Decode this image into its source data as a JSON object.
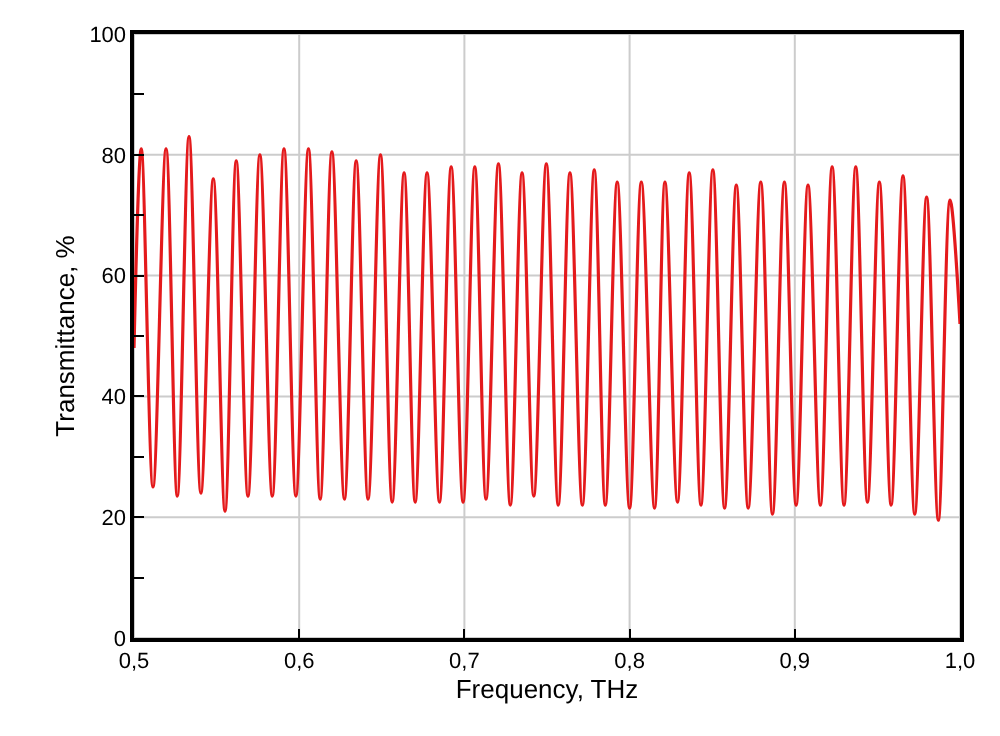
{
  "chart_data": {
    "type": "line",
    "xlabel": "Frequency, THz",
    "ylabel": "Transmittance, %",
    "x": [
      0.5,
      0.5044,
      0.5115,
      0.5194,
      0.5262,
      0.5333,
      0.5405,
      0.548,
      0.5551,
      0.5619,
      0.569,
      0.5762,
      0.5837,
      0.5908,
      0.598,
      0.6056,
      0.6127,
      0.6198,
      0.6274,
      0.6345,
      0.6417,
      0.6492,
      0.6563,
      0.6635,
      0.6702,
      0.6774,
      0.6849,
      0.692,
      0.6992,
      0.7063,
      0.7131,
      0.7206,
      0.7278,
      0.7349,
      0.742,
      0.7496,
      0.7568,
      0.7639,
      0.7714,
      0.7786,
      0.7853,
      0.7925,
      0.8,
      0.8071,
      0.8151,
      0.8214,
      0.829,
      0.8361,
      0.8432,
      0.8504,
      0.8575,
      0.8646,
      0.8718,
      0.8794,
      0.8865,
      0.8937,
      0.9008,
      0.908,
      0.9155,
      0.9226,
      0.9298,
      0.9369,
      0.944,
      0.9512,
      0.9583,
      0.9655,
      0.9726,
      0.9798,
      0.9869,
      0.994,
      1.0
    ],
    "series": [
      {
        "color": "#e41a1c",
        "values": [
          48,
          81,
          25,
          81,
          23.5,
          83,
          24,
          76,
          21,
          79,
          23.5,
          80,
          23.5,
          81,
          23.5,
          81,
          23,
          80.5,
          23,
          79,
          23,
          80,
          22.5,
          77,
          22.5,
          77,
          22.5,
          78,
          22.5,
          78,
          23,
          78.5,
          22,
          77,
          23.5,
          78.5,
          22,
          77,
          22,
          77.5,
          22,
          75.5,
          21.5,
          75.5,
          21.5,
          75.5,
          22.5,
          77,
          22,
          77.5,
          21.5,
          75,
          21.5,
          75.5,
          20.5,
          75.5,
          22,
          75,
          22,
          78,
          22,
          78,
          22.5,
          75.5,
          22,
          76.5,
          20.5,
          73,
          19.5,
          72.5,
          52
        ]
      }
    ],
    "xlim": [
      0.5,
      1.0
    ],
    "xticks": [
      {
        "value": 0.5,
        "label": "0,5"
      },
      {
        "value": 0.6,
        "label": "0,6"
      },
      {
        "value": 0.7,
        "label": "0,7"
      },
      {
        "value": 0.8,
        "label": "0,8"
      },
      {
        "value": 0.9,
        "label": "0,9"
      },
      {
        "value": 1.0,
        "label": "1,0"
      }
    ],
    "ylim": [
      0,
      100
    ],
    "yticks": [
      0,
      {
        "value": 10,
        "label": null
      },
      20,
      {
        "value": 30,
        "label": null
      },
      40,
      {
        "value": 50,
        "label": null
      },
      60,
      {
        "value": 70,
        "label": null
      },
      80,
      {
        "value": 90,
        "label": null
      },
      100
    ],
    "grid": true,
    "marker": "none",
    "line_style": "solid"
  }
}
